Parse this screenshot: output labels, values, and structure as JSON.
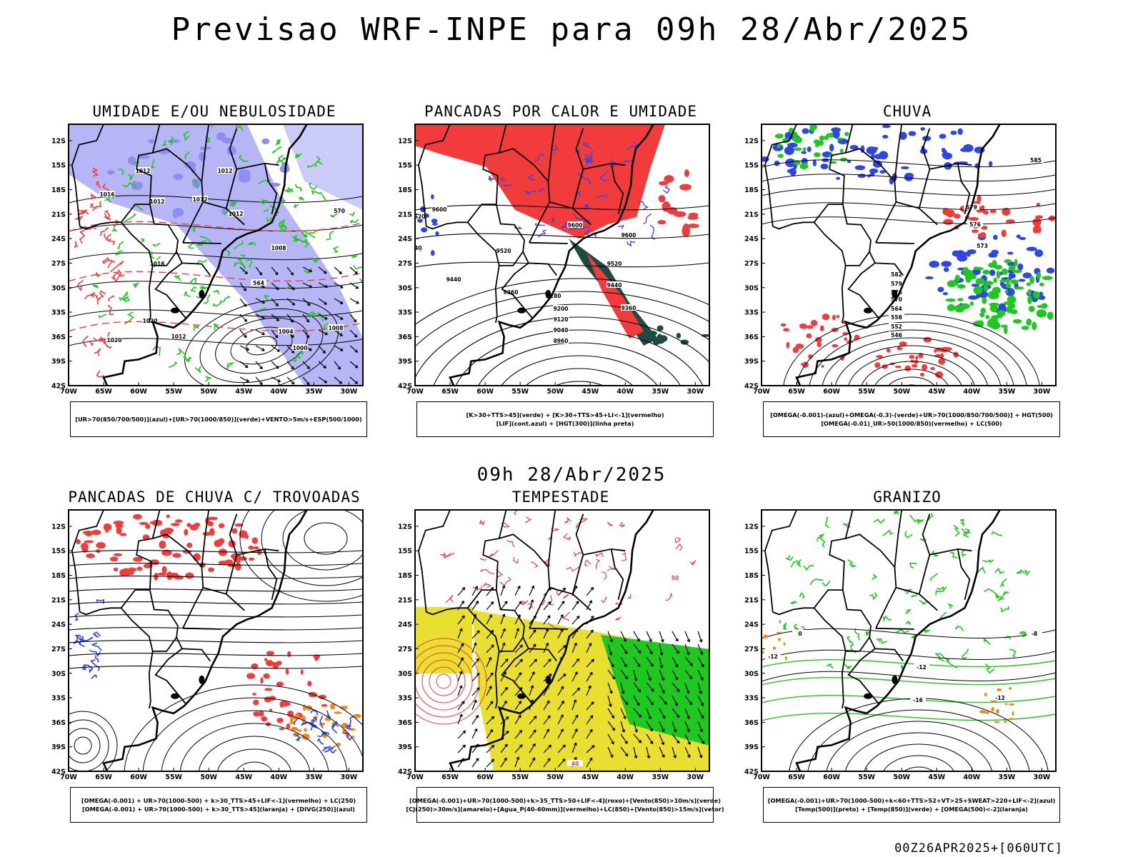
{
  "title": "Previsao WRF-INPE  para 09h 28/Abr/2025",
  "mid_title": "09h 28/Abr/2025",
  "footer": "00Z26APR2025+[060UTC]",
  "lat_labels": [
    "12S",
    "15S",
    "18S",
    "21S",
    "24S",
    "27S",
    "30S",
    "33S",
    "36S",
    "39S",
    "42S"
  ],
  "lon_labels": [
    "70W",
    "65W",
    "60W",
    "55W",
    "50W",
    "45W",
    "40W",
    "35W",
    "30W"
  ],
  "colors": {
    "blue": "#2f46e6",
    "light_blue": "#a9a9f5",
    "green": "#1ec81e",
    "red": "#f23c3c",
    "dark_teal": "#1f4a44",
    "orange": "#f28a1e",
    "yellow": "#e8df30",
    "black": "#000000"
  },
  "panels": [
    {
      "id": "umidade",
      "title": "UMIDADE E/OU NEBULOSIDADE",
      "legend": [
        "[UR>70(850/700/500)](azul)+[UR>70(1000/850)](verde)+VENTO>5m/s+ESP(500/1000)"
      ],
      "contour_labels": [
        "1012",
        "1012",
        "1012",
        "1012",
        "1012",
        "1016",
        "1016",
        "1020",
        "1020",
        "1008",
        "1008",
        "1004",
        "1000",
        "1012",
        "570",
        "576",
        "564"
      ]
    },
    {
      "id": "pancadas_calor",
      "title": "PANCADAS POR CALOR E UMIDADE",
      "legend": [
        "[K>30+TTS>45](verde) + [K>30+TTS>45+LI<-1](vermelho)",
        "[LIF](cont.azul) + [HGT(300)](linha preta)"
      ],
      "contour_labels": [
        "9600",
        "9520",
        "9440",
        "9600",
        "9520",
        "9440",
        "9360",
        "9280",
        "9200",
        "9120",
        "9040",
        "8960",
        "9520",
        "9440",
        "9360",
        "9600"
      ]
    },
    {
      "id": "chuva",
      "title": "CHUVA",
      "legend": [
        "[OMEGA(-0.001)-(azul)+OMEGA(-0.3)-(verde)+UR>70(1000/850/700/500)] + HGT(500)",
        "[OMEGA(-0.01)_UR>50(1000/850)(vermelho) + LC(500)"
      ],
      "contour_labels": [
        "585",
        "582",
        "579",
        "576",
        "570",
        "564",
        "558",
        "552",
        "546",
        "579",
        "576",
        "573"
      ]
    },
    {
      "id": "pancadas_trovoadas",
      "title": "PANCADAS DE CHUVA C/ TROVOADAS",
      "legend": [
        "[OMEGA(-0.001) + UR>70(1000-500) + k>30_TTS>45+LIF<-1](vermelho) + LC(250)",
        "[OMEGA(-0.001) + UR>70(1000-500) + k>30_TTS>45](laranja) + [DIVG(250)](azul)"
      ],
      "contour_labels": []
    },
    {
      "id": "tempestade",
      "title": "TEMPESTADE",
      "legend": [
        "[OMEGA(-0.001)+UR>70(1000-500)+k>35_TTS>50+LIF<-4](roxo)+[Vento(850)>10m/s](verde)",
        "[CJ(250)>30m/s](amarelo)+[Agua_P(40-60mm)](vermelho)+LC(850)+[Vento(850)>15m/s](vetor)"
      ],
      "contour_labels": [
        "50",
        "40"
      ]
    },
    {
      "id": "granizo",
      "title": "GRANIZO",
      "legend": [
        "[OMEGA(-0.001)+UR>70(1000-500)+k<60+TTS>52+VT>25+SWEAT>220+LIF<-2](azul)",
        "[Temp(500)](preto) + [Temp(850)](verde) + [OMEGA(500)<-2](laranja)"
      ],
      "contour_labels": [
        "-12",
        "-16",
        "-12",
        "0",
        "-12",
        "-8"
      ]
    }
  ]
}
